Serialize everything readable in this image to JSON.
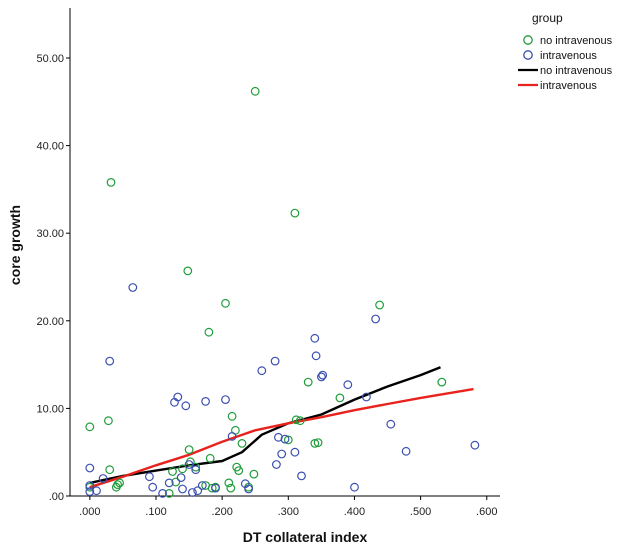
{
  "chart_data": {
    "type": "scatter",
    "xlabel": "DT collateral index",
    "ylabel": "core growth",
    "xlim": [
      -0.03,
      0.62
    ],
    "ylim": [
      0,
      50
    ],
    "x_ticks": [
      0,
      0.1,
      0.2,
      0.3,
      0.4,
      0.5,
      0.6
    ],
    "x_tick_labels": [
      ".000",
      ".100",
      ".200",
      ".300",
      ".400",
      ".500",
      ".600"
    ],
    "y_ticks": [
      0,
      10,
      20,
      30,
      40,
      50
    ],
    "y_tick_labels": [
      ".00",
      "10.00",
      "20.00",
      "30.00",
      "40.00",
      "50.00"
    ],
    "legend": {
      "title": "group",
      "position": "top-right",
      "entries": [
        {
          "label": "no intravenous",
          "kind": "marker",
          "color": "#1f9d3a"
        },
        {
          "label": "intravenous",
          "kind": "marker",
          "color": "#3b4fb0"
        },
        {
          "label": "no intravenous",
          "kind": "line",
          "color": "#000000"
        },
        {
          "label": "intravenous",
          "kind": "line",
          "color": "#e8231e"
        }
      ]
    },
    "series": [
      {
        "name": "no intravenous",
        "kind": "scatter",
        "color": "#1f9d3a",
        "points": [
          [
            0.0,
            7.9
          ],
          [
            0.0,
            1.0
          ],
          [
            0.028,
            8.6
          ],
          [
            0.03,
            3.0
          ],
          [
            0.032,
            35.8
          ],
          [
            0.04,
            1.0
          ],
          [
            0.042,
            1.3
          ],
          [
            0.045,
            1.5
          ],
          [
            0.12,
            0.3
          ],
          [
            0.125,
            2.8
          ],
          [
            0.13,
            1.6
          ],
          [
            0.14,
            3.1
          ],
          [
            0.148,
            25.7
          ],
          [
            0.15,
            5.3
          ],
          [
            0.152,
            3.9
          ],
          [
            0.16,
            3.3
          ],
          [
            0.175,
            1.2
          ],
          [
            0.18,
            18.7
          ],
          [
            0.182,
            4.3
          ],
          [
            0.185,
            0.9
          ],
          [
            0.19,
            1.0
          ],
          [
            0.205,
            22.0
          ],
          [
            0.21,
            1.5
          ],
          [
            0.213,
            0.9
          ],
          [
            0.215,
            9.1
          ],
          [
            0.22,
            7.5
          ],
          [
            0.222,
            3.3
          ],
          [
            0.225,
            2.9
          ],
          [
            0.23,
            6.0
          ],
          [
            0.24,
            1.0
          ],
          [
            0.248,
            2.5
          ],
          [
            0.25,
            46.2
          ],
          [
            0.3,
            6.4
          ],
          [
            0.31,
            32.3
          ],
          [
            0.312,
            8.7
          ],
          [
            0.318,
            8.6
          ],
          [
            0.33,
            13.0
          ],
          [
            0.34,
            6.0
          ],
          [
            0.345,
            6.1
          ],
          [
            0.378,
            11.2
          ],
          [
            0.438,
            21.8
          ],
          [
            0.532,
            13.0
          ]
        ]
      },
      {
        "name": "intravenous",
        "kind": "scatter",
        "color": "#3b4fb0",
        "points": [
          [
            0.0,
            3.2
          ],
          [
            0.0,
            0.5
          ],
          [
            0.0,
            1.2
          ],
          [
            0.01,
            0.6
          ],
          [
            0.02,
            2.0
          ],
          [
            0.03,
            15.4
          ],
          [
            0.065,
            23.8
          ],
          [
            0.09,
            2.2
          ],
          [
            0.095,
            1.0
          ],
          [
            0.11,
            0.3
          ],
          [
            0.12,
            1.5
          ],
          [
            0.128,
            10.7
          ],
          [
            0.133,
            11.3
          ],
          [
            0.138,
            2.1
          ],
          [
            0.14,
            0.8
          ],
          [
            0.145,
            10.3
          ],
          [
            0.15,
            3.6
          ],
          [
            0.155,
            0.4
          ],
          [
            0.16,
            3.0
          ],
          [
            0.163,
            0.6
          ],
          [
            0.17,
            1.2
          ],
          [
            0.175,
            10.8
          ],
          [
            0.19,
            0.9
          ],
          [
            0.205,
            11.0
          ],
          [
            0.215,
            6.8
          ],
          [
            0.235,
            1.4
          ],
          [
            0.24,
            0.8
          ],
          [
            0.26,
            14.3
          ],
          [
            0.28,
            15.4
          ],
          [
            0.282,
            3.6
          ],
          [
            0.285,
            6.7
          ],
          [
            0.29,
            4.8
          ],
          [
            0.295,
            6.5
          ],
          [
            0.31,
            5.0
          ],
          [
            0.32,
            2.3
          ],
          [
            0.34,
            18.0
          ],
          [
            0.342,
            16.0
          ],
          [
            0.35,
            13.6
          ],
          [
            0.352,
            13.8
          ],
          [
            0.39,
            12.7
          ],
          [
            0.4,
            1.0
          ],
          [
            0.418,
            11.3
          ],
          [
            0.432,
            20.2
          ],
          [
            0.455,
            8.2
          ],
          [
            0.478,
            5.1
          ],
          [
            0.582,
            5.8
          ]
        ]
      },
      {
        "name": "no intravenous",
        "kind": "line",
        "color": "#000000",
        "points": [
          [
            0.0,
            1.5
          ],
          [
            0.05,
            2.3
          ],
          [
            0.1,
            2.9
          ],
          [
            0.15,
            3.5
          ],
          [
            0.2,
            4.0
          ],
          [
            0.23,
            5.0
          ],
          [
            0.26,
            7.0
          ],
          [
            0.3,
            8.3
          ],
          [
            0.35,
            9.3
          ],
          [
            0.4,
            11.0
          ],
          [
            0.45,
            12.5
          ],
          [
            0.5,
            13.8
          ],
          [
            0.53,
            14.7
          ]
        ]
      },
      {
        "name": "intravenous",
        "kind": "line",
        "color": "#e8231e",
        "points": [
          [
            0.0,
            1.0
          ],
          [
            0.05,
            2.2
          ],
          [
            0.1,
            3.5
          ],
          [
            0.15,
            4.7
          ],
          [
            0.2,
            6.2
          ],
          [
            0.25,
            7.5
          ],
          [
            0.3,
            8.3
          ],
          [
            0.35,
            9.0
          ],
          [
            0.4,
            9.8
          ],
          [
            0.45,
            10.5
          ],
          [
            0.5,
            11.2
          ],
          [
            0.58,
            12.2
          ]
        ]
      }
    ]
  }
}
